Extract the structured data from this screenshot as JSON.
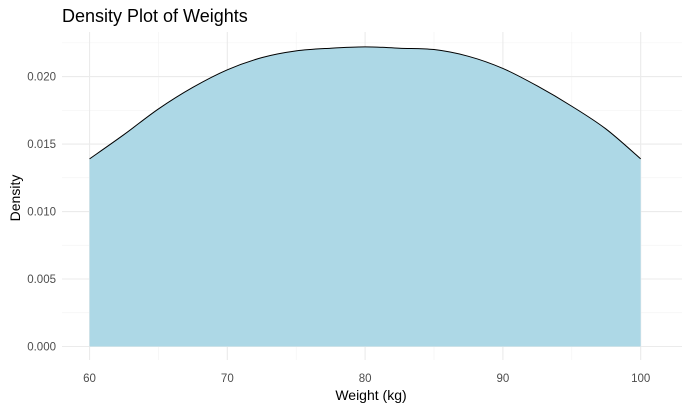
{
  "chart_data": {
    "type": "area",
    "title": "Density Plot of Weights",
    "xlabel": "Weight (kg)",
    "ylabel": "Density",
    "xlim": [
      58,
      103
    ],
    "ylim": [
      -0.001,
      0.0233
    ],
    "x_ticks": [
      60,
      70,
      80,
      90,
      100
    ],
    "x_tick_labels": [
      "60",
      "70",
      "80",
      "90",
      "100"
    ],
    "y_ticks": [
      0,
      0.005,
      0.01,
      0.015,
      0.02
    ],
    "y_tick_labels": [
      "0.000",
      "0.005",
      "0.010",
      "0.015",
      "0.020"
    ],
    "grid": true,
    "legend": "none",
    "fill_color": "#add8e6",
    "line_color": "#000000",
    "series": [
      {
        "x": [
          60,
          62.5,
          65,
          67.5,
          70,
          72.5,
          75,
          77.5,
          80,
          82.5,
          85,
          87.5,
          90,
          92.5,
          95,
          97.5,
          100
        ],
        "values": [
          0.0139,
          0.0157,
          0.0176,
          0.0192,
          0.0205,
          0.0214,
          0.0219,
          0.0221,
          0.0222,
          0.0221,
          0.022,
          0.0215,
          0.0206,
          0.0193,
          0.0178,
          0.0161,
          0.0139
        ]
      }
    ]
  }
}
